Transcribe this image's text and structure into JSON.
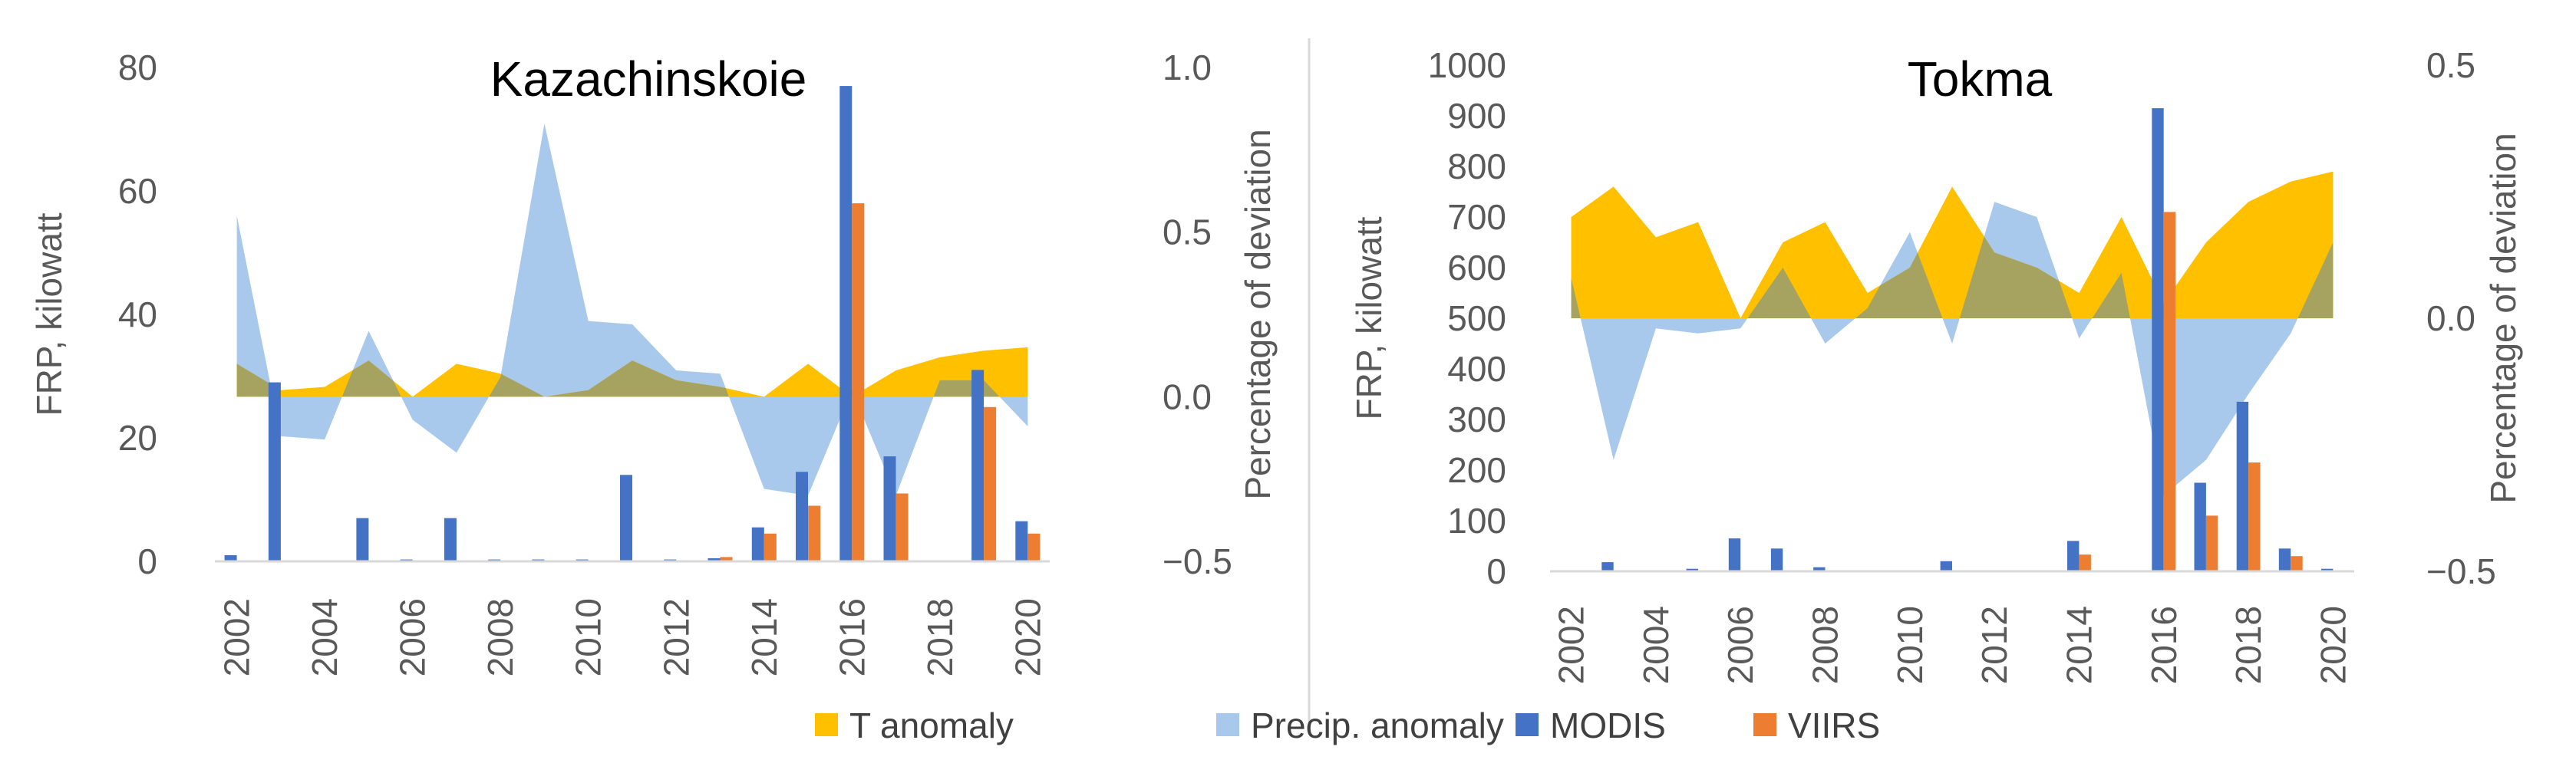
{
  "legend": [
    {
      "label": "T anomaly",
      "color": "#FFC000"
    },
    {
      "label": "Precip. anomaly",
      "color": "#A9C9EC"
    },
    {
      "label": "MODIS",
      "color": "#4472C4"
    },
    {
      "label": "VIIRS",
      "color": "#ED7D31"
    }
  ],
  "colors": {
    "overlap": "#A6A361",
    "axis": "#D9D9D9",
    "text": "#595959"
  },
  "chart_data": [
    {
      "type": "bar",
      "title": "Kazachinskoie",
      "ylabel": "FRP, kilowatt",
      "y2label": "Percentage of deviation",
      "ylim": [
        0,
        80
      ],
      "yticks": [
        0,
        20,
        40,
        60,
        80
      ],
      "y2lim": [
        -0.5,
        1.0
      ],
      "y2ticks": [
        "−0.5",
        "0.0",
        "0.5",
        "1.0"
      ],
      "y2tickvalues": [
        -0.5,
        0.0,
        0.5,
        1.0
      ],
      "x": [
        2002,
        2003,
        2004,
        2005,
        2006,
        2007,
        2008,
        2009,
        2010,
        2011,
        2012,
        2013,
        2014,
        2015,
        2016,
        2017,
        2018,
        2019,
        2020
      ],
      "xticks": [
        "2002",
        "2004",
        "2006",
        "2008",
        "2010",
        "2012",
        "2014",
        "2016",
        "2018",
        "2020"
      ],
      "series": [
        {
          "name": "MODIS",
          "kind": "bar",
          "axis": "left",
          "values": [
            1,
            29,
            0,
            7,
            0.3,
            7,
            0.3,
            0.3,
            0.3,
            14,
            0.3,
            0.5,
            5.5,
            14.5,
            77,
            17,
            0,
            31,
            6.5
          ]
        },
        {
          "name": "VIIRS",
          "kind": "bar",
          "axis": "left",
          "values": [
            0,
            0,
            0,
            0,
            0,
            0,
            0,
            0,
            0,
            0,
            0,
            0.7,
            4.5,
            9,
            58,
            11,
            0,
            25,
            4.5
          ]
        },
        {
          "name": "T anomaly",
          "kind": "area",
          "axis": "right",
          "values": [
            0.1,
            0.02,
            0.03,
            0.11,
            0.0,
            0.1,
            0.07,
            0.0,
            0.02,
            0.11,
            0.05,
            0.03,
            0.0,
            0.1,
            0.0,
            0.08,
            0.12,
            0.14,
            0.15
          ]
        },
        {
          "name": "Precip. anomaly",
          "kind": "area",
          "axis": "right",
          "values": [
            0.55,
            -0.12,
            -0.13,
            0.2,
            -0.07,
            -0.17,
            0.06,
            0.83,
            0.23,
            0.22,
            0.08,
            0.07,
            -0.28,
            -0.3,
            0.02,
            -0.3,
            0.05,
            0.05,
            -0.09
          ]
        }
      ]
    },
    {
      "type": "bar",
      "title": "Tokma",
      "ylabel": "FRP, kilowatt",
      "y2label": "Percentage of deviation",
      "ylim": [
        0,
        1000
      ],
      "yticks": [
        0,
        100,
        200,
        300,
        400,
        500,
        600,
        700,
        800,
        900,
        1000
      ],
      "y2lim": [
        -0.5,
        0.5
      ],
      "y2ticks": [
        "−0.5",
        "0.0",
        "0.5"
      ],
      "y2tickvalues": [
        -0.5,
        0.0,
        0.5
      ],
      "x": [
        2002,
        2003,
        2004,
        2005,
        2006,
        2007,
        2008,
        2009,
        2010,
        2011,
        2012,
        2013,
        2014,
        2015,
        2016,
        2017,
        2018,
        2019,
        2020
      ],
      "xticks": [
        "2002",
        "2004",
        "2006",
        "2008",
        "2010",
        "2012",
        "2014",
        "2016",
        "2018",
        "2020"
      ],
      "series": [
        {
          "name": "MODIS",
          "kind": "bar",
          "axis": "left",
          "values": [
            0,
            18,
            0,
            5,
            65,
            45,
            8,
            0,
            0,
            20,
            0,
            0,
            60,
            0,
            915,
            175,
            335,
            45,
            5
          ]
        },
        {
          "name": "VIIRS",
          "kind": "bar",
          "axis": "left",
          "values": [
            0,
            0,
            0,
            0,
            0,
            0,
            0,
            0,
            0,
            0,
            0,
            0,
            33,
            0,
            710,
            110,
            215,
            30,
            0
          ]
        },
        {
          "name": "T anomaly",
          "kind": "area",
          "axis": "right",
          "values": [
            0.2,
            0.26,
            0.16,
            0.19,
            0.0,
            0.15,
            0.19,
            0.05,
            0.1,
            0.26,
            0.13,
            0.1,
            0.05,
            0.2,
            0.03,
            0.15,
            0.23,
            0.27,
            0.29
          ]
        },
        {
          "name": "Precip. anomaly",
          "kind": "area",
          "axis": "right",
          "values": [
            0.08,
            -0.28,
            -0.02,
            -0.03,
            -0.02,
            0.1,
            -0.05,
            0.02,
            0.17,
            -0.05,
            0.23,
            0.2,
            -0.04,
            0.09,
            -0.35,
            -0.28,
            -0.15,
            -0.03,
            0.15
          ]
        }
      ]
    }
  ]
}
